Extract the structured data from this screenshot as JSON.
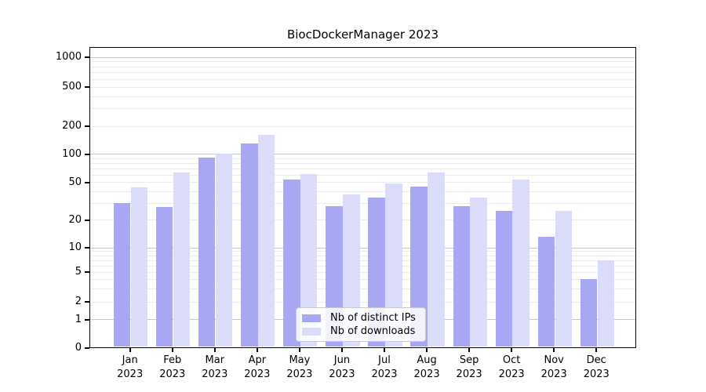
{
  "chart_data": {
    "type": "bar",
    "title": "BiocDockerManager 2023",
    "categories": [
      "Jan",
      "Feb",
      "Mar",
      "Apr",
      "May",
      "Jun",
      "Jul",
      "Aug",
      "Sep",
      "Oct",
      "Nov",
      "Dec"
    ],
    "category_year": "2023",
    "series": [
      {
        "name": "Nb of distinct IPs",
        "color": "#a7a7f3",
        "values": [
          30,
          27,
          91,
          130,
          53,
          28,
          34,
          45,
          28,
          25,
          13,
          4
        ]
      },
      {
        "name": "Nb of downloads",
        "color": "#dbdbfa",
        "values": [
          44,
          63,
          100,
          160,
          61,
          37,
          48,
          63,
          34,
          53,
          25,
          7
        ]
      }
    ],
    "xlabel": "",
    "ylabel": "",
    "y_ticks": [
      0,
      1,
      2,
      5,
      10,
      20,
      50,
      100,
      200,
      500,
      1000
    ],
    "y_scale": "log above 1, linear between 0 and 1",
    "ylim": [
      0,
      1300
    ],
    "grid": {
      "major_values": [
        1,
        10,
        100,
        1000
      ],
      "minor_values": [
        2,
        3,
        4,
        5,
        6,
        7,
        8,
        9,
        20,
        30,
        40,
        50,
        60,
        70,
        80,
        90,
        200,
        300,
        400,
        500,
        600,
        700,
        800,
        900
      ],
      "major_color": "#c8c8c8",
      "minor_color": "#ececec"
    },
    "legend": {
      "position": "lower center inside plot",
      "labels": [
        "Nb of distinct IPs",
        "Nb of downloads"
      ]
    }
  }
}
